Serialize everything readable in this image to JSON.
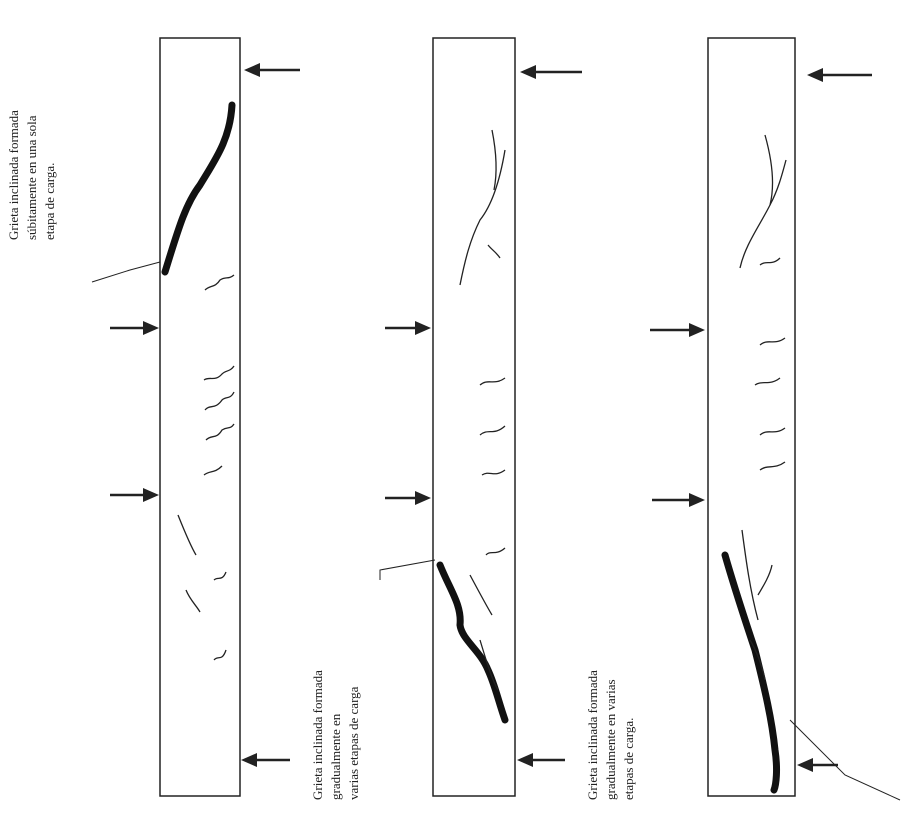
{
  "labels": [
    {
      "lines": [
        "Grieta inclinada formada",
        "súbitamente en una sola",
        "etapa de carga."
      ]
    },
    {
      "lines": [
        "Grieta inclinada formada",
        "gradualmente en",
        "varias etapas de carga"
      ]
    },
    {
      "lines": [
        "Grieta inclinada formada",
        "gradualmente en varias",
        "etapas de carga."
      ]
    }
  ]
}
